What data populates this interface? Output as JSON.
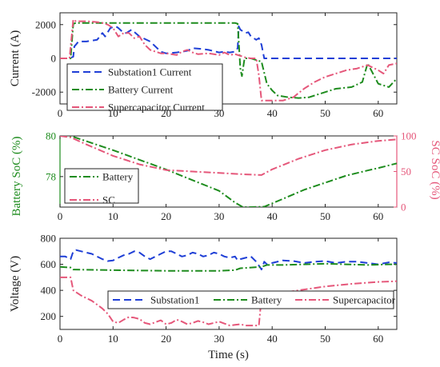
{
  "colors": {
    "substation": "#1f3fd6",
    "battery": "#1e8c1e",
    "supercapacitor": "#e5577a",
    "axis": "#222222"
  },
  "chart_data": [
    {
      "type": "line",
      "ylabel": "Current (A)",
      "xlim": [
        0,
        63.5
      ],
      "ylim": [
        -2700,
        2700
      ],
      "xticks": [
        0,
        10,
        20,
        30,
        40,
        50,
        60
      ],
      "xticklabels": [
        "0",
        "10",
        "20",
        "30",
        "40",
        "50",
        "60"
      ],
      "yticks": [
        2000,
        0,
        -2000
      ],
      "yticklabels": [
        "2000",
        "0",
        "-2000"
      ],
      "grid": false,
      "legend_position": "bottom-left",
      "series": [
        {
          "name": "Substation1 Current",
          "style": "dashed",
          "color": "#1f3fd6",
          "x": [
            0,
            1.8,
            2.5,
            2.7,
            3.5,
            5,
            7,
            8,
            8.5,
            9.5,
            10.5,
            11,
            12,
            12.5,
            13.5,
            15,
            17,
            19,
            20,
            22,
            23,
            24,
            25,
            27,
            28,
            30,
            31,
            32,
            33,
            33.5,
            33.7,
            34,
            35,
            35.5,
            36,
            37,
            37.5,
            38,
            38.5,
            63.5
          ],
          "y": [
            0,
            0,
            100,
            700,
            1000,
            1000,
            1100,
            1500,
            1300,
            1800,
            1900,
            1800,
            1500,
            1500,
            1700,
            1300,
            1000,
            400,
            300,
            350,
            400,
            450,
            600,
            550,
            500,
            350,
            400,
            350,
            400,
            600,
            1900,
            1700,
            1500,
            1550,
            1300,
            1100,
            1200,
            800,
            0,
            0
          ]
        },
        {
          "name": "Battery Current",
          "style": "dashdot",
          "color": "#1e8c1e",
          "x": [
            0,
            2,
            2.5,
            3,
            10,
            20,
            30,
            33,
            33.5,
            34,
            34.3,
            34.8,
            36,
            38,
            39,
            40,
            41,
            43,
            45,
            47,
            49,
            52,
            55,
            57,
            58,
            59,
            60,
            61,
            62,
            63.5
          ],
          "y": [
            0,
            0,
            2050,
            2100,
            2100,
            2100,
            2100,
            2100,
            2050,
            -600,
            -1050,
            0,
            0,
            -200,
            -1500,
            -1900,
            -2200,
            -2300,
            -2350,
            -2300,
            -2100,
            -1800,
            -1700,
            -1400,
            -300,
            -900,
            -1500,
            -1600,
            -1700,
            -1200
          ]
        },
        {
          "name": "Supercapacitor Current",
          "style": "dashdot",
          "color": "#e5577a",
          "x": [
            0,
            1.8,
            2.5,
            3,
            5,
            7,
            8,
            9,
            10,
            11,
            12,
            13,
            14,
            15,
            16,
            17,
            18,
            19,
            20,
            22,
            23,
            24,
            25,
            26,
            28,
            30,
            31,
            32,
            33,
            34,
            35,
            36,
            37,
            37.5,
            38,
            39,
            40,
            41,
            42,
            44,
            46,
            48,
            50,
            52,
            54,
            56,
            58,
            60,
            61,
            62,
            63.5
          ],
          "y": [
            0,
            0,
            2300,
            2200,
            2200,
            2150,
            2100,
            2000,
            1800,
            1300,
            1500,
            1500,
            1200,
            1300,
            800,
            500,
            400,
            300,
            300,
            200,
            400,
            500,
            350,
            250,
            300,
            200,
            350,
            200,
            250,
            150,
            50,
            0,
            0,
            -1000,
            -2500,
            -2500,
            -2500,
            -2500,
            -2500,
            -2300,
            -1800,
            -1400,
            -1100,
            -900,
            -700,
            -600,
            -400,
            -700,
            -900,
            -400,
            -300
          ]
        }
      ]
    },
    {
      "type": "line",
      "ylabel": "Battery SoC (%)",
      "ylabel_right": "SC SoC (%)",
      "xlim": [
        0,
        63.5
      ],
      "ylim": [
        76.5,
        80
      ],
      "ylim_right": [
        0,
        100
      ],
      "xticks": [
        0,
        10,
        20,
        30,
        40,
        50,
        60
      ],
      "xticklabels": [
        "0",
        "10",
        "20",
        "30",
        "40",
        "50",
        "60"
      ],
      "yticks": [
        80,
        78
      ],
      "yticklabels": [
        "80",
        "78"
      ],
      "yticks_right": [
        100,
        50,
        0
      ],
      "yticklabels_right": [
        "100",
        "50",
        "0"
      ],
      "grid": false,
      "legend_position": "bottom-left",
      "series": [
        {
          "name": "Battery",
          "axis": "left",
          "style": "dashdot",
          "color": "#1e8c1e",
          "x": [
            0,
            2,
            10,
            20,
            30,
            33,
            34.5,
            36,
            38.5,
            42,
            46,
            50,
            54,
            58,
            60,
            63.5
          ],
          "y": [
            80,
            80,
            79.3,
            78.35,
            77.3,
            76.72,
            76.5,
            76.5,
            76.52,
            76.9,
            77.35,
            77.7,
            78.05,
            78.3,
            78.42,
            78.65
          ]
        },
        {
          "name": "SC",
          "axis": "right",
          "style": "dashdot",
          "color": "#e5577a",
          "x": [
            0,
            2,
            5,
            10,
            15,
            20,
            25,
            30,
            35,
            38,
            40,
            45,
            50,
            55,
            60,
            63.5
          ],
          "y": [
            100,
            98,
            88,
            72,
            60,
            52,
            50,
            48,
            46,
            45,
            53,
            68,
            80,
            88,
            93,
            95
          ]
        }
      ]
    },
    {
      "type": "line",
      "ylabel": "Voltage (V)",
      "xlabel": "Time (s)",
      "xlim": [
        0,
        63.5
      ],
      "ylim": [
        100,
        800
      ],
      "xticks": [
        0,
        10,
        20,
        30,
        40,
        50,
        60
      ],
      "xticklabels": [
        "0",
        "10",
        "20",
        "30",
        "40",
        "50",
        "60"
      ],
      "yticks": [
        800,
        600,
        400,
        200
      ],
      "yticklabels": [
        "800",
        "600",
        "400",
        "200"
      ],
      "grid": false,
      "legend_position": "bottom",
      "series": [
        {
          "name": "Substation1",
          "style": "dashed",
          "color": "#1f3fd6",
          "x": [
            0,
            1,
            2,
            2.5,
            3,
            4,
            5,
            6,
            7,
            8,
            9,
            10,
            11,
            12,
            13,
            14,
            15,
            16,
            17,
            18,
            19,
            20,
            21,
            22,
            23,
            24,
            25,
            26,
            27,
            28,
            29,
            30,
            31,
            32,
            33,
            33.5,
            34,
            35,
            36,
            37,
            38,
            38.5,
            39,
            40,
            42,
            44,
            46,
            48,
            50,
            52,
            54,
            56,
            58,
            60,
            62,
            63.5
          ],
          "y": [
            660,
            660,
            640,
            700,
            710,
            700,
            690,
            680,
            660,
            640,
            625,
            630,
            650,
            670,
            680,
            700,
            690,
            660,
            640,
            660,
            680,
            700,
            700,
            680,
            660,
            670,
            690,
            680,
            660,
            670,
            690,
            680,
            660,
            650,
            660,
            630,
            640,
            650,
            660,
            620,
            560,
            620,
            600,
            610,
            630,
            625,
            610,
            620,
            625,
            610,
            620,
            620,
            610,
            600,
            615,
            610
          ]
        },
        {
          "name": "Battery",
          "style": "dashdot",
          "color": "#1e8c1e",
          "x": [
            0,
            2,
            2.5,
            10,
            20,
            30,
            33,
            34,
            36,
            38,
            39,
            42,
            46,
            50,
            54,
            58,
            62,
            63.5
          ],
          "y": [
            580,
            575,
            560,
            555,
            550,
            550,
            555,
            570,
            575,
            580,
            595,
            595,
            600,
            605,
            600,
            595,
            600,
            600
          ]
        },
        {
          "name": "Supercapacitor",
          "style": "dashdot",
          "color": "#e5577a",
          "x": [
            0,
            2,
            2.5,
            4,
            6,
            8,
            9,
            10,
            11,
            12,
            13,
            14,
            15,
            16,
            17,
            18,
            19,
            20,
            21,
            22,
            23,
            24,
            25,
            26,
            27,
            28,
            29,
            30,
            31,
            32,
            33,
            34,
            35,
            36,
            37,
            37.5,
            38,
            38.5,
            40,
            45,
            50,
            55,
            60,
            63.5
          ],
          "y": [
            500,
            500,
            400,
            360,
            320,
            260,
            220,
            160,
            150,
            175,
            195,
            190,
            180,
            150,
            140,
            155,
            170,
            140,
            150,
            175,
            160,
            140,
            150,
            165,
            155,
            140,
            150,
            160,
            145,
            130,
            135,
            140,
            130,
            130,
            130,
            130,
            350,
            350,
            370,
            400,
            430,
            450,
            465,
            470
          ]
        }
      ]
    }
  ]
}
